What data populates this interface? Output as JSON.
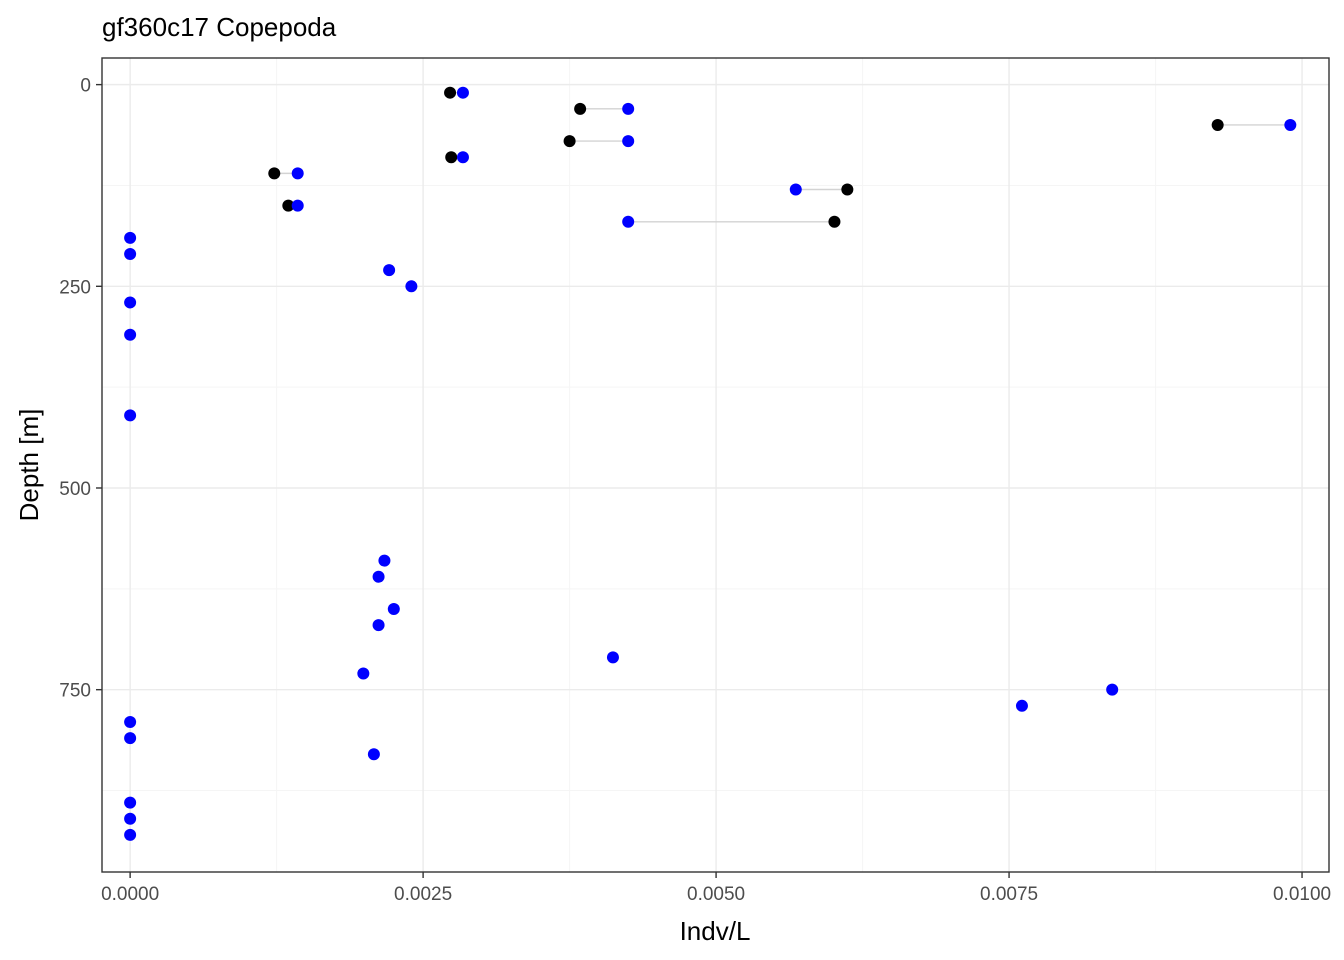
{
  "chart_data": {
    "type": "scatter",
    "title": "gf360c17 Copepoda",
    "xlabel": "Indv/L",
    "ylabel": "Depth [m]",
    "xlim": [
      -0.00024,
      0.01023
    ],
    "ylim": [
      -33,
      976
    ],
    "y_reversed": true,
    "x_ticks": [
      0.0,
      0.0025,
      0.005,
      0.0075,
      0.01
    ],
    "x_tick_labels": [
      "0.0000",
      "0.0025",
      "0.0050",
      "0.0075",
      "0.0100"
    ],
    "y_ticks": [
      0,
      250,
      500,
      750
    ],
    "y_tick_labels": [
      "0",
      "250",
      "500",
      "750"
    ],
    "grid": true,
    "legend": "none",
    "colors": {
      "series_a": "#000000",
      "series_b": "#0000ff",
      "connector": "#d3d3d3",
      "grid_major": "#ebebeb",
      "grid_minor": "#f5f5f5",
      "panel_border": "#333333"
    },
    "pairs": [
      {
        "depth": 10,
        "a": 0.00273,
        "b": 0.00284
      },
      {
        "depth": 30,
        "a": 0.00384,
        "b": 0.00425
      },
      {
        "depth": 50,
        "a": 0.00928,
        "b": 0.0099
      },
      {
        "depth": 70,
        "a": 0.00375,
        "b": 0.00425
      },
      {
        "depth": 90,
        "a": 0.00274,
        "b": 0.00284
      },
      {
        "depth": 110,
        "a": 0.00123,
        "b": 0.00143
      },
      {
        "depth": 130,
        "a": 0.00612,
        "b": 0.00568
      },
      {
        "depth": 150,
        "a": 0.00135,
        "b": 0.00143
      },
      {
        "depth": 170,
        "a": 0.00601,
        "b": 0.00425
      }
    ],
    "series_b_only": [
      {
        "depth": 190,
        "value": 0.0
      },
      {
        "depth": 210,
        "value": 0.0
      },
      {
        "depth": 230,
        "value": 0.00221
      },
      {
        "depth": 250,
        "value": 0.0024
      },
      {
        "depth": 270,
        "value": 0.0
      },
      {
        "depth": 310,
        "value": 0.0
      },
      {
        "depth": 410,
        "value": 0.0
      },
      {
        "depth": 590,
        "value": 0.00217
      },
      {
        "depth": 610,
        "value": 0.00212
      },
      {
        "depth": 650,
        "value": 0.00225
      },
      {
        "depth": 670,
        "value": 0.00212
      },
      {
        "depth": 710,
        "value": 0.00412
      },
      {
        "depth": 730,
        "value": 0.00199
      },
      {
        "depth": 750,
        "value": 0.00838
      },
      {
        "depth": 770,
        "value": 0.00761
      },
      {
        "depth": 790,
        "value": 0.0
      },
      {
        "depth": 810,
        "value": 0.0
      },
      {
        "depth": 830,
        "value": 0.00208
      },
      {
        "depth": 890,
        "value": 0.0
      },
      {
        "depth": 910,
        "value": 0.0
      },
      {
        "depth": 930,
        "value": 0.0
      }
    ]
  }
}
